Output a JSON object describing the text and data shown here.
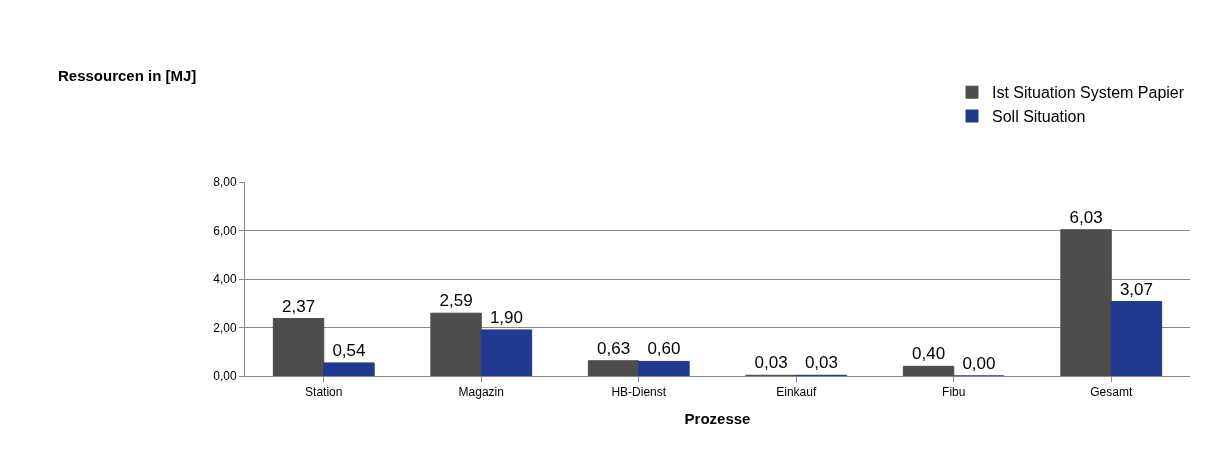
{
  "chart_data": {
    "type": "bar",
    "annotations": [
      "Ressourcen in [MJ]"
    ],
    "xlabel": "Prozesse",
    "categories": [
      "Station",
      "Magazin",
      "HB-Dienst",
      "Einkauf",
      "Fibu",
      "Gesamt"
    ],
    "series": [
      {
        "name": "Ist Situation System Papier",
        "color": "#4d4d4d",
        "values": [
          2.37,
          2.59,
          0.63,
          0.03,
          0.4,
          6.03
        ],
        "value_labels": [
          "2,37",
          "2,59",
          "0,63",
          "0,03",
          "0,40",
          "6,03"
        ]
      },
      {
        "name": "Soll Situation",
        "color": "#1f3a8f",
        "values": [
          0.54,
          1.9,
          0.6,
          0.03,
          0.0,
          3.07
        ],
        "value_labels": [
          "0,54",
          "1,90",
          "0,60",
          "0,03",
          "0,00",
          "3,07"
        ]
      }
    ],
    "ylim": [
      0,
      8
    ],
    "yticks": [
      {
        "value": 0,
        "label": "0,00"
      },
      {
        "value": 2,
        "label": "2,00"
      },
      {
        "value": 4,
        "label": "4,00"
      },
      {
        "value": 6,
        "label": "6,00"
      },
      {
        "value": 8,
        "label": "8,00"
      }
    ],
    "grid": "y",
    "legend": "top right"
  }
}
